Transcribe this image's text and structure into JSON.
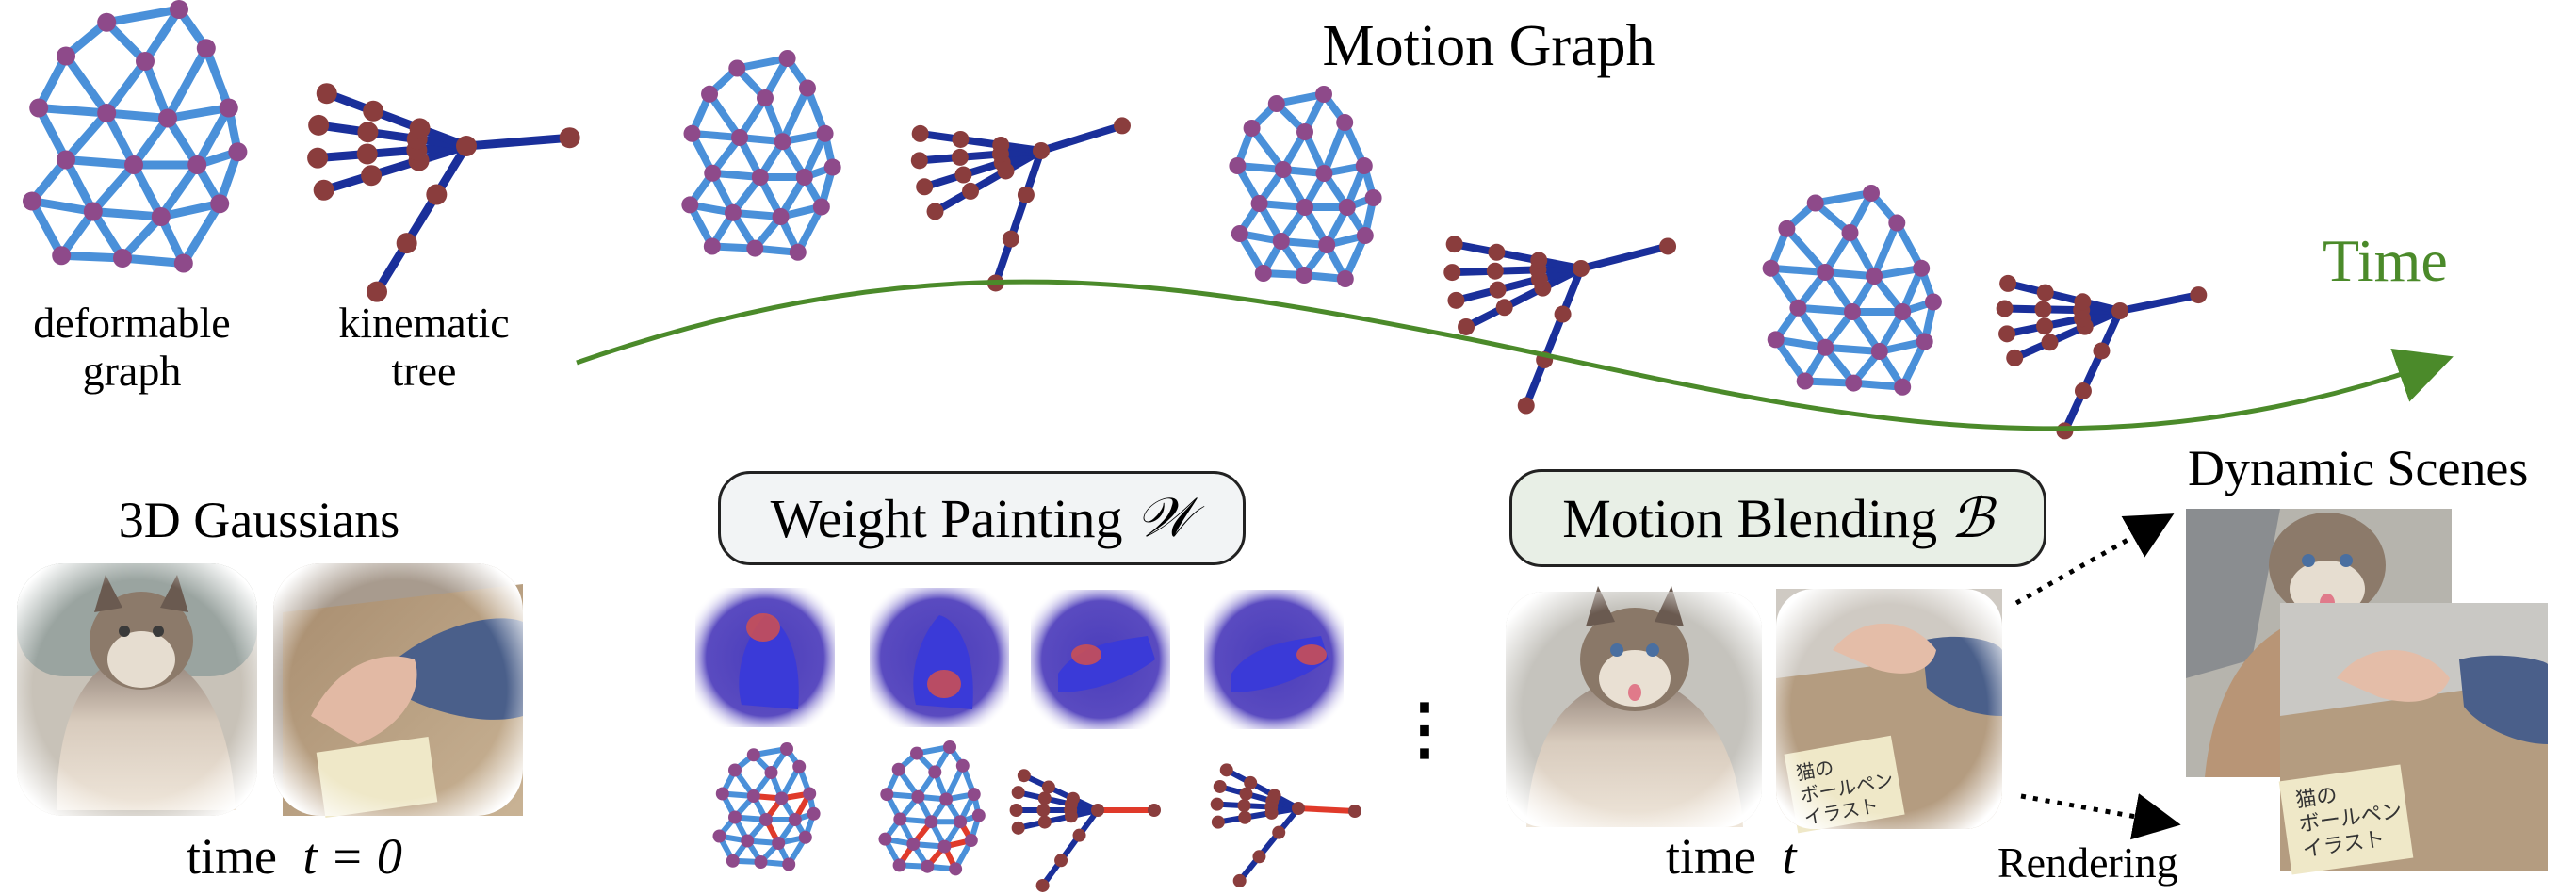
{
  "title": "Motion Graph",
  "time_label": "Time",
  "legend": {
    "deformable": "deformable\ngraph",
    "kinematic": "kinematic\ntree"
  },
  "gaussians": {
    "title": "3D Gaussians",
    "time_prefix": "time",
    "time_value": "t = 0"
  },
  "weight_painting": {
    "label": "Weight Painting",
    "symbol": "𝒲"
  },
  "motion_blending": {
    "label": "Motion Blending",
    "symbol": "ℬ",
    "time_prefix": "time",
    "time_value": "t"
  },
  "dynamic_scenes": {
    "title": "Dynamic Scenes"
  },
  "rendering": {
    "label": "Rendering"
  },
  "ellipsis": "⋮",
  "book_text": {
    "line1": "猫の",
    "line2": "ボールペン",
    "line3": "イラスト"
  },
  "colors": {
    "edge_light": "#4a90d9",
    "edge_dark": "#1a2f9a",
    "node_purple": "#8e4a8a",
    "node_brown": "#8a3d3d",
    "highlight": "#e03a2a",
    "time_green": "#4b8a2a",
    "paint_blue": "#3a3ad8"
  }
}
